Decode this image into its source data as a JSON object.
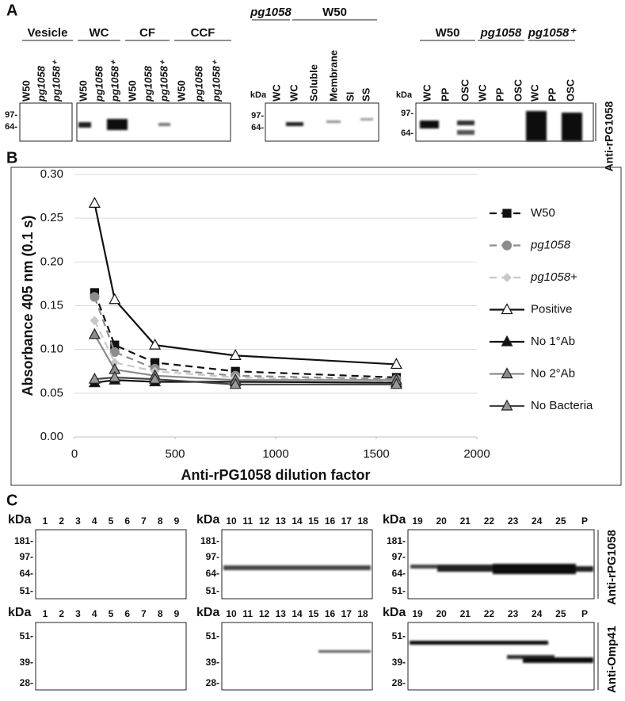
{
  "panel_a": {
    "label": "A",
    "blots": [
      {
        "groups": [
          {
            "name": "Vesicle",
            "lanes": [
              "W50",
              "pg1058",
              "pg1058⁺"
            ]
          },
          {
            "name": "WC",
            "lanes": [
              "W50",
              "pg1058",
              "pg1058⁺"
            ]
          },
          {
            "name": "CF",
            "lanes": [
              "W50",
              "pg1058",
              "pg1058⁺"
            ]
          },
          {
            "name": "CCF",
            "lanes": [
              "W50",
              "pg1058",
              "pg1058⁺"
            ]
          }
        ],
        "markers": [
          "97-",
          "64-"
        ]
      },
      {
        "unit": "kDa",
        "groups": [
          {
            "name": "pg1058",
            "lanes": [
              "WC"
            ]
          },
          {
            "name": "W50",
            "lanes": [
              "WC",
              "Soluble",
              "Membrane",
              "SI",
              "SS"
            ]
          }
        ],
        "markers": [
          "97-",
          "64-"
        ]
      },
      {
        "unit": "kDa",
        "groups": [
          {
            "name": "W50",
            "lanes": [
              "WC",
              "PP",
              "OSC"
            ]
          },
          {
            "name": "pg1058",
            "lanes": [
              "WC",
              "PP",
              "OSC"
            ]
          },
          {
            "name": "pg1058⁺",
            "lanes": [
              "WC",
              "PP",
              "OSC"
            ]
          }
        ],
        "markers": [
          "97-",
          "64-"
        ],
        "antibody": "Anti-rPG1058"
      }
    ]
  },
  "panel_b": {
    "label": "B"
  },
  "chart_data": {
    "type": "line",
    "xlabel": "Anti-rPG1058 dilution factor",
    "ylabel": "Absorbance 405 nm (0.1 s)",
    "x": [
      100,
      200,
      400,
      800,
      1600
    ],
    "xlim": [
      0,
      2000
    ],
    "xticks": [
      0,
      500,
      1000,
      1500,
      2000
    ],
    "ylim": [
      0,
      0.3
    ],
    "yticks": [
      {
        "value": 0,
        "label": "0.00"
      },
      {
        "value": 0.05,
        "label": "0.05"
      },
      {
        "value": 0.1,
        "label": "0.10"
      },
      {
        "value": 0.15,
        "label": "0.15"
      },
      {
        "value": 0.2,
        "label": "0.20"
      },
      {
        "value": 0.25,
        "label": "0.25"
      },
      {
        "value": 0.3,
        "label": "0.30"
      }
    ],
    "grid": true,
    "legend": "right",
    "series": [
      {
        "name": "W50",
        "color": "#111111",
        "marker": "square",
        "linestyle": "dashed",
        "marker_fill": "#111111",
        "values": [
          0.165,
          0.105,
          0.085,
          0.075,
          0.068
        ]
      },
      {
        "name": "pg1058",
        "color": "#8c8c8c",
        "marker": "circle",
        "linestyle": "dashed",
        "marker_fill": "#8c8c8c",
        "values": [
          0.16,
          0.097,
          0.078,
          0.07,
          0.066
        ]
      },
      {
        "name": "pg1058+",
        "color": "#c8c8c8",
        "marker": "diamond",
        "linestyle": "dashed",
        "marker_fill": "#c8c8c8",
        "values": [
          0.133,
          0.085,
          0.075,
          0.068,
          0.064
        ]
      },
      {
        "name": "Positive",
        "color": "#111111",
        "marker": "triangle",
        "linestyle": "solid",
        "marker_fill": "#ffffff",
        "values": [
          0.267,
          0.157,
          0.105,
          0.093,
          0.083
        ]
      },
      {
        "name": "No 1°Ab",
        "color": "#111111",
        "marker": "triangle",
        "linestyle": "solid",
        "marker_fill": "#111111",
        "values": [
          0.062,
          0.065,
          0.063,
          0.063,
          0.062
        ]
      },
      {
        "name": "No 2°Ab",
        "color": "#8c8c8c",
        "marker": "triangle",
        "linestyle": "solid",
        "marker_fill": "#8c8c8c",
        "values": [
          0.117,
          0.077,
          0.07,
          0.065,
          0.065
        ]
      },
      {
        "name": "No Bacteria",
        "color": "#444444",
        "marker": "triangle",
        "linestyle": "solid",
        "marker_fill": "#999999",
        "values": [
          0.066,
          0.068,
          0.066,
          0.06,
          0.06
        ]
      }
    ]
  },
  "panel_c": {
    "label": "C",
    "rows": [
      {
        "antibody": "Anti-rPG1058",
        "blots": [
          {
            "unit": "kDa",
            "lanes": [
              "1",
              "2",
              "3",
              "4",
              "5",
              "6",
              "7",
              "8",
              "9"
            ],
            "markers": [
              "181-",
              "97-",
              "64-",
              "51-"
            ]
          },
          {
            "unit": "kDa",
            "lanes": [
              "10",
              "11",
              "12",
              "13",
              "14",
              "15",
              "16",
              "17",
              "18"
            ],
            "markers": [
              "181-",
              "97-",
              "64-",
              "51-"
            ]
          },
          {
            "unit": "kDa",
            "lanes": [
              "19",
              "20",
              "21",
              "22",
              "23",
              "24",
              "25",
              "P"
            ],
            "markers": [
              "181-",
              "97-",
              "64-",
              "51-"
            ]
          }
        ]
      },
      {
        "antibody": "Anti-Omp41",
        "blots": [
          {
            "unit": "kDa",
            "lanes": [
              "1",
              "2",
              "3",
              "4",
              "5",
              "6",
              "7",
              "8",
              "9"
            ],
            "markers": [
              "51-",
              "39-",
              "28-"
            ]
          },
          {
            "unit": "kDa",
            "lanes": [
              "10",
              "11",
              "12",
              "13",
              "14",
              "15",
              "16",
              "17",
              "18"
            ],
            "markers": [
              "51-",
              "39-",
              "28-"
            ]
          },
          {
            "unit": "kDa",
            "lanes": [
              "19",
              "20",
              "21",
              "22",
              "23",
              "24",
              "25",
              "P"
            ],
            "markers": [
              "51-",
              "39-",
              "28-"
            ]
          }
        ]
      }
    ]
  }
}
